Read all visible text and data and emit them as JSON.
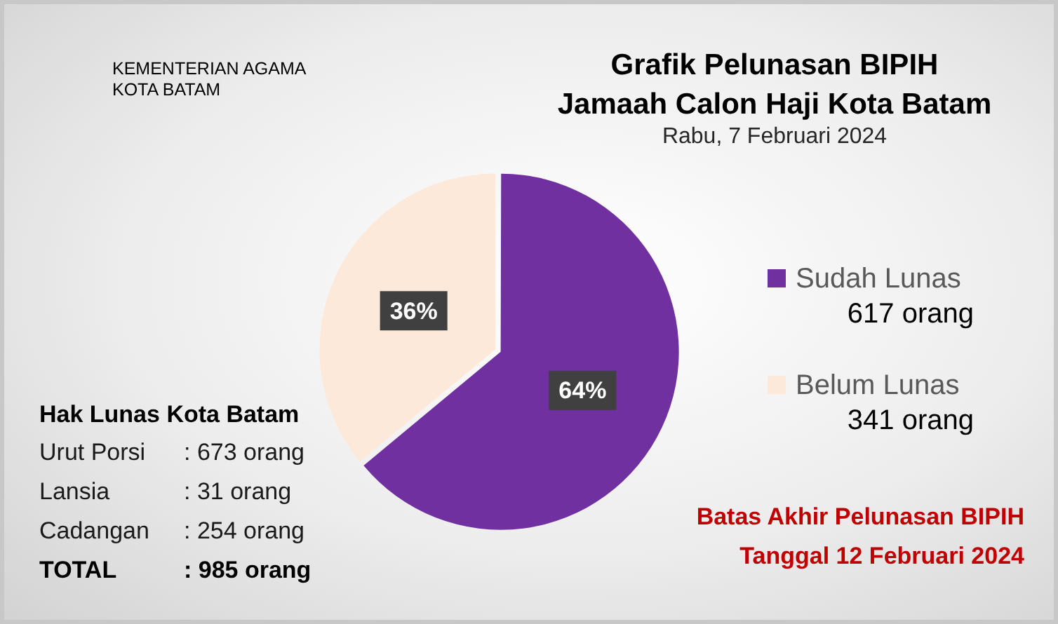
{
  "chart_data": {
    "type": "pie",
    "title": "Grafik Pelunasan BIPIH\nJamaah Calon Haji Kota Batam",
    "subtitle": "Rabu, 7 Februari 2024",
    "categories": [
      "Sudah Lunas",
      "Belum Lunas"
    ],
    "values": [
      64,
      36
    ],
    "colors": [
      "#7030a0",
      "#fde9d9"
    ],
    "value_labels": [
      "64%",
      "36%"
    ],
    "legend": "right",
    "annotations": [
      "KEMENTERIAN AGAMA\nKOTA BATAM",
      "617 orang",
      "341 orang",
      "Hak Lunas Kota Batam",
      "Urut Porsi\t: 673 orang",
      "Lansia\t: 31 orang",
      "Cadangan\t: 254 orang",
      "TOTAL\t: 985 orang",
      "Batas Akhir Pelunasan BIPIH\nTanggal 12 Februari 2024"
    ]
  }
}
